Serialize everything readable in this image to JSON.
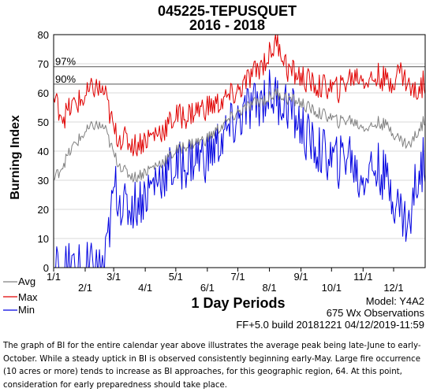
{
  "chart_data": {
    "type": "line",
    "title": "045225-TEPUSQUET",
    "subtitle": "2016 - 2018",
    "ylabel": "Burning Index",
    "xlabel": "1 Day Periods",
    "ylim": [
      0,
      80
    ],
    "yticks": [
      "0",
      "10",
      "20",
      "30",
      "40",
      "50",
      "60",
      "70",
      "80"
    ],
    "xticks": [
      {
        "label": "1/1",
        "day": 0
      },
      {
        "label": "2/1",
        "day": 31
      },
      {
        "label": "3/1",
        "day": 59
      },
      {
        "label": "4/1",
        "day": 90
      },
      {
        "label": "5/1",
        "day": 120
      },
      {
        "label": "6/1",
        "day": 151
      },
      {
        "label": "7/1",
        "day": 181
      },
      {
        "label": "8/1",
        "day": 212
      },
      {
        "label": "9/1",
        "day": 243
      },
      {
        "label": "10/1",
        "day": 273
      },
      {
        "label": "11/1",
        "day": 304
      },
      {
        "label": "12/1",
        "day": 334
      }
    ],
    "xlim": [
      0,
      365
    ],
    "reference_lines": [
      {
        "label": "97%",
        "value": 69
      },
      {
        "label": "90%",
        "value": 63
      }
    ],
    "legend": {
      "position": "bottom-left",
      "entries": [
        "Avg",
        "Max",
        "Min"
      ]
    },
    "series": [
      {
        "name": "Avg",
        "color": "#808080",
        "values": [
          [
            0,
            30
          ],
          [
            10,
            36
          ],
          [
            20,
            42
          ],
          [
            30,
            46
          ],
          [
            40,
            49
          ],
          [
            50,
            48
          ],
          [
            60,
            38
          ],
          [
            70,
            33
          ],
          [
            80,
            31
          ],
          [
            90,
            33
          ],
          [
            100,
            35
          ],
          [
            110,
            37
          ],
          [
            120,
            40
          ],
          [
            130,
            42
          ],
          [
            140,
            43
          ],
          [
            150,
            44
          ],
          [
            160,
            47
          ],
          [
            170,
            50
          ],
          [
            180,
            53
          ],
          [
            190,
            55
          ],
          [
            200,
            57
          ],
          [
            210,
            58
          ],
          [
            220,
            60
          ],
          [
            230,
            58
          ],
          [
            240,
            57
          ],
          [
            250,
            55
          ],
          [
            260,
            53
          ],
          [
            270,
            52
          ],
          [
            280,
            50
          ],
          [
            290,
            51
          ],
          [
            300,
            49
          ],
          [
            310,
            48
          ],
          [
            320,
            50
          ],
          [
            330,
            48
          ],
          [
            340,
            44
          ],
          [
            350,
            42
          ],
          [
            355,
            45
          ],
          [
            365,
            51
          ]
        ]
      },
      {
        "name": "Max",
        "color": "#e00000",
        "values": [
          [
            0,
            58
          ],
          [
            10,
            52
          ],
          [
            20,
            56
          ],
          [
            30,
            58
          ],
          [
            40,
            62
          ],
          [
            50,
            60
          ],
          [
            60,
            46
          ],
          [
            70,
            44
          ],
          [
            80,
            42
          ],
          [
            90,
            44
          ],
          [
            100,
            46
          ],
          [
            110,
            48
          ],
          [
            120,
            52
          ],
          [
            130,
            52
          ],
          [
            140,
            54
          ],
          [
            150,
            55
          ],
          [
            160,
            56
          ],
          [
            170,
            58
          ],
          [
            180,
            60
          ],
          [
            190,
            64
          ],
          [
            200,
            68
          ],
          [
            210,
            72
          ],
          [
            220,
            78
          ],
          [
            230,
            68
          ],
          [
            240,
            66
          ],
          [
            250,
            64
          ],
          [
            260,
            62
          ],
          [
            270,
            62
          ],
          [
            280,
            61
          ],
          [
            290,
            65
          ],
          [
            300,
            66
          ],
          [
            310,
            64
          ],
          [
            320,
            66
          ],
          [
            330,
            63
          ],
          [
            340,
            68
          ],
          [
            350,
            62
          ],
          [
            355,
            60
          ],
          [
            365,
            64
          ]
        ]
      },
      {
        "name": "Min",
        "color": "#0000e0",
        "values": [
          [
            0,
            0
          ],
          [
            10,
            0
          ],
          [
            20,
            0
          ],
          [
            30,
            0
          ],
          [
            40,
            0
          ],
          [
            50,
            0
          ],
          [
            60,
            28
          ],
          [
            70,
            20
          ],
          [
            80,
            22
          ],
          [
            90,
            25
          ],
          [
            100,
            30
          ],
          [
            110,
            33
          ],
          [
            120,
            34
          ],
          [
            130,
            36
          ],
          [
            140,
            38
          ],
          [
            150,
            38
          ],
          [
            160,
            42
          ],
          [
            170,
            46
          ],
          [
            180,
            50
          ],
          [
            190,
            54
          ],
          [
            200,
            56
          ],
          [
            210,
            60
          ],
          [
            220,
            58
          ],
          [
            230,
            56
          ],
          [
            240,
            50
          ],
          [
            250,
            44
          ],
          [
            260,
            40
          ],
          [
            270,
            38
          ],
          [
            280,
            36
          ],
          [
            290,
            40
          ],
          [
            300,
            30
          ],
          [
            310,
            34
          ],
          [
            320,
            34
          ],
          [
            330,
            28
          ],
          [
            340,
            20
          ],
          [
            350,
            14
          ],
          [
            355,
            28
          ],
          [
            365,
            38
          ]
        ]
      }
    ]
  },
  "info": {
    "model": "Model: Y4A2",
    "observations": "675 Wx Observations",
    "build": "FF+5.0 build 20181221 04/12/2019-11:59"
  },
  "caption": "The graph of BI for the entire calendar year above illustrates the average peak being late-June to early-October.  While a steady uptick in BI is observed consistently beginning early-May.  Large fire occurrence (10 acres or more) tends to increase as BI approaches, for this geographic region, 64. At this point, consideration for early preparedness should take place."
}
